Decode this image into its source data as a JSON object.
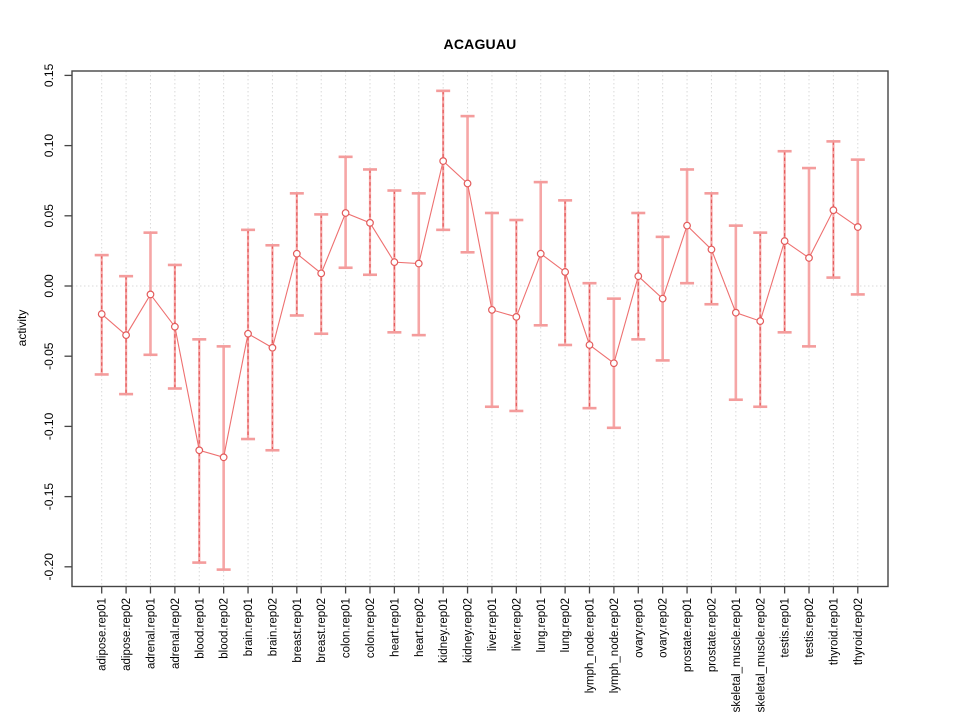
{
  "chart_data": {
    "type": "scatter",
    "subtype": "point-estimates-with-error-bars",
    "title": "ACAGUAU",
    "xlabel": "",
    "ylabel": "activity",
    "ylim": [
      -0.215,
      0.153
    ],
    "yticks": [
      0.15,
      0.1,
      0.05,
      0.0,
      -0.05,
      -0.1,
      -0.15,
      -0.2
    ],
    "ytick_labels": [
      "0.15",
      "0.10",
      "0.05",
      "0.00",
      "-0.05",
      "-0.10",
      "-0.15",
      "-0.20"
    ],
    "grid": {
      "vertical_dotted_per_category": true,
      "horizontal_dotted_at_zero": true,
      "legend": "none"
    },
    "categories": [
      "adipose.rep01",
      "adipose.rep02",
      "adrenal.rep01",
      "adrenal.rep02",
      "blood.rep01",
      "blood.rep02",
      "brain.rep01",
      "brain.rep02",
      "breast.rep01",
      "breast.rep02",
      "colon.rep01",
      "colon.rep02",
      "heart.rep01",
      "heart.rep02",
      "kidney.rep01",
      "kidney.rep02",
      "liver.rep01",
      "liver.rep02",
      "lung.rep01",
      "lung.rep02",
      "lymph_node.rep01",
      "lymph_node.rep02",
      "ovary.rep01",
      "ovary.rep02",
      "prostate.rep01",
      "prostate.rep02",
      "skeletal_muscle.rep01",
      "skeletal_muscle.rep02",
      "testis.rep01",
      "testis.rep02",
      "thyroid.rep01",
      "thyroid.rep02"
    ],
    "series": [
      {
        "name": "activity",
        "points": [
          {
            "category": "adipose.rep01",
            "value": -0.02,
            "lower": -0.063,
            "upper": 0.022,
            "bar_style": "dashed"
          },
          {
            "category": "adipose.rep02",
            "value": -0.035,
            "lower": -0.077,
            "upper": 0.007,
            "bar_style": "dashed"
          },
          {
            "category": "adrenal.rep01",
            "value": -0.006,
            "lower": -0.049,
            "upper": 0.038,
            "bar_style": "solid"
          },
          {
            "category": "adrenal.rep02",
            "value": -0.029,
            "lower": -0.073,
            "upper": 0.015,
            "bar_style": "dashed"
          },
          {
            "category": "blood.rep01",
            "value": -0.117,
            "lower": -0.197,
            "upper": -0.038,
            "bar_style": "dashed"
          },
          {
            "category": "blood.rep02",
            "value": -0.122,
            "lower": -0.202,
            "upper": -0.043,
            "bar_style": "solid"
          },
          {
            "category": "brain.rep01",
            "value": -0.034,
            "lower": -0.109,
            "upper": 0.04,
            "bar_style": "dashed"
          },
          {
            "category": "brain.rep02",
            "value": -0.044,
            "lower": -0.117,
            "upper": 0.029,
            "bar_style": "dashed"
          },
          {
            "category": "breast.rep01",
            "value": 0.023,
            "lower": -0.021,
            "upper": 0.066,
            "bar_style": "dashed"
          },
          {
            "category": "breast.rep02",
            "value": 0.009,
            "lower": -0.034,
            "upper": 0.051,
            "bar_style": "dashed"
          },
          {
            "category": "colon.rep01",
            "value": 0.052,
            "lower": 0.013,
            "upper": 0.092,
            "bar_style": "solid"
          },
          {
            "category": "colon.rep02",
            "value": 0.045,
            "lower": 0.008,
            "upper": 0.083,
            "bar_style": "dashed"
          },
          {
            "category": "heart.rep01",
            "value": 0.017,
            "lower": -0.033,
            "upper": 0.068,
            "bar_style": "dashed"
          },
          {
            "category": "heart.rep02",
            "value": 0.016,
            "lower": -0.035,
            "upper": 0.066,
            "bar_style": "solid"
          },
          {
            "category": "kidney.rep01",
            "value": 0.089,
            "lower": 0.04,
            "upper": 0.139,
            "bar_style": "dashed"
          },
          {
            "category": "kidney.rep02",
            "value": 0.073,
            "lower": 0.024,
            "upper": 0.121,
            "bar_style": "solid"
          },
          {
            "category": "liver.rep01",
            "value": -0.017,
            "lower": -0.086,
            "upper": 0.052,
            "bar_style": "solid"
          },
          {
            "category": "liver.rep02",
            "value": -0.022,
            "lower": -0.089,
            "upper": 0.047,
            "bar_style": "dashed"
          },
          {
            "category": "lung.rep01",
            "value": 0.023,
            "lower": -0.028,
            "upper": 0.074,
            "bar_style": "solid"
          },
          {
            "category": "lung.rep02",
            "value": 0.01,
            "lower": -0.042,
            "upper": 0.061,
            "bar_style": "dashed"
          },
          {
            "category": "lymph_node.rep01",
            "value": -0.042,
            "lower": -0.087,
            "upper": 0.002,
            "bar_style": "dashed"
          },
          {
            "category": "lymph_node.rep02",
            "value": -0.055,
            "lower": -0.101,
            "upper": -0.009,
            "bar_style": "solid"
          },
          {
            "category": "ovary.rep01",
            "value": 0.007,
            "lower": -0.038,
            "upper": 0.052,
            "bar_style": "dashed"
          },
          {
            "category": "ovary.rep02",
            "value": -0.009,
            "lower": -0.053,
            "upper": 0.035,
            "bar_style": "solid"
          },
          {
            "category": "prostate.rep01",
            "value": 0.043,
            "lower": 0.002,
            "upper": 0.083,
            "bar_style": "solid"
          },
          {
            "category": "prostate.rep02",
            "value": 0.026,
            "lower": -0.013,
            "upper": 0.066,
            "bar_style": "dashed"
          },
          {
            "category": "skeletal_muscle.rep01",
            "value": -0.019,
            "lower": -0.081,
            "upper": 0.043,
            "bar_style": "solid"
          },
          {
            "category": "skeletal_muscle.rep02",
            "value": -0.025,
            "lower": -0.086,
            "upper": 0.038,
            "bar_style": "dashed"
          },
          {
            "category": "testis.rep01",
            "value": 0.032,
            "lower": -0.033,
            "upper": 0.096,
            "bar_style": "dashed"
          },
          {
            "category": "testis.rep02",
            "value": 0.02,
            "lower": -0.043,
            "upper": 0.084,
            "bar_style": "solid"
          },
          {
            "category": "thyroid.rep01",
            "value": 0.054,
            "lower": 0.006,
            "upper": 0.103,
            "bar_style": "dashed"
          },
          {
            "category": "thyroid.rep02",
            "value": 0.042,
            "lower": -0.006,
            "upper": 0.09,
            "bar_style": "solid"
          }
        ]
      }
    ],
    "colors": {
      "marker_stroke": "#e35b5b",
      "connector_line": "#ee7070",
      "errorbar_solid": "#f6a6a6",
      "errorbar_dash": "#e35b5b",
      "errorbar_cap": "#f49c9c",
      "gridline": "#d9d9d9",
      "frame": "#454545",
      "tick": "#454545",
      "text": "#000000",
      "background": "#ffffff"
    }
  }
}
